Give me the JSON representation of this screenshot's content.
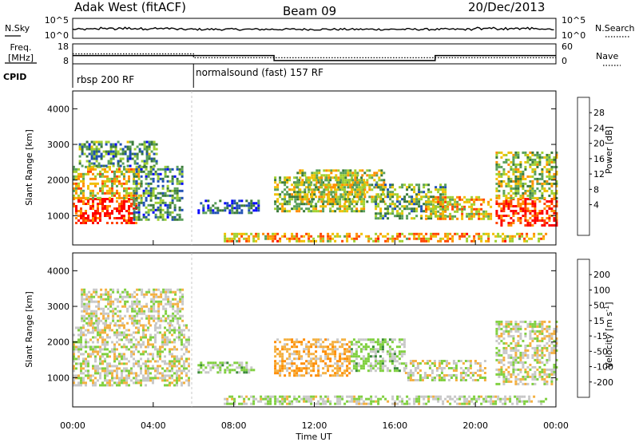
{
  "header": {
    "station": "Adak West (fitACF)",
    "beam": "Beam 09",
    "date": "20/Dec/2013"
  },
  "nsky_panel": {
    "left_label": "N.Sky",
    "right_label": "N.Search",
    "left_ticks": [
      "10^5",
      "10^0"
    ],
    "right_ticks": [
      "10^5",
      "10^0"
    ]
  },
  "freq_panel": {
    "left_label_line1": "Freq.",
    "left_label_line2": "[MHz]",
    "left_ticks": [
      "18",
      "8"
    ],
    "right_label": "Nave",
    "right_ticks": [
      "60",
      "0"
    ]
  },
  "cpid": {
    "label": "CPID",
    "modes": [
      {
        "name": "rbsp 200 RF",
        "start_hour": 0
      },
      {
        "name": "normalsound (fast) 157 RF",
        "start_hour": 6
      }
    ]
  },
  "colors": {
    "power": [
      "#0000ff",
      "#1f4fb4",
      "#3a7a3a",
      "#5aa05a",
      "#a0d030",
      "#f0c000",
      "#ff8c00",
      "#ff4400",
      "#ff0000"
    ],
    "velocity": [
      "#ff0000",
      "#ff4400",
      "#ff8c00",
      "#f4b040",
      "#c8c8c8",
      "#80d040",
      "#3a8a3a",
      "#2050b0",
      "#1040d0"
    ]
  },
  "chart_data": [
    {
      "type": "heatmap",
      "name": "power",
      "xlabel": "",
      "ylabel": "Slant Range [km]",
      "xlim": [
        0,
        24
      ],
      "ylim": [
        180,
        4500
      ],
      "yticks": [
        1000,
        2000,
        3000,
        4000
      ],
      "colorbar": {
        "label": "Power [dB]",
        "ticks": [
          "28",
          "24",
          "20",
          "16",
          "12",
          "8",
          "4"
        ],
        "range": [
          0,
          30
        ]
      },
      "regions": [
        {
          "x": [
            0,
            3.2
          ],
          "range": [
            800,
            1500
          ],
          "power_db": 27
        },
        {
          "x": [
            0,
            3.4
          ],
          "range": [
            1500,
            2400
          ],
          "power_db": 18
        },
        {
          "x": [
            0.3,
            4.2
          ],
          "range": [
            2400,
            3100
          ],
          "power_db": 10
        },
        {
          "x": [
            3.0,
            5.4
          ],
          "range": [
            900,
            2400
          ],
          "power_db": 9
        },
        {
          "x": [
            6.2,
            9.2
          ],
          "range": [
            1050,
            1450
          ],
          "power_db": 6
        },
        {
          "x": [
            10.0,
            14.5
          ],
          "range": [
            1100,
            2100
          ],
          "power_db": 14
        },
        {
          "x": [
            11.0,
            15.5
          ],
          "range": [
            1400,
            2300
          ],
          "power_db": 16
        },
        {
          "x": [
            15.0,
            18.5
          ],
          "range": [
            900,
            1900
          ],
          "power_db": 12
        },
        {
          "x": [
            17.5,
            20.8
          ],
          "range": [
            900,
            1550
          ],
          "power_db": 18
        },
        {
          "x": [
            21.0,
            24.0
          ],
          "range": [
            750,
            1500
          ],
          "power_db": 27
        },
        {
          "x": [
            21.0,
            24.0
          ],
          "range": [
            1500,
            2800
          ],
          "power_db": 15
        },
        {
          "x": [
            7.5,
            23.5
          ],
          "range": [
            280,
            520
          ],
          "power_db": 20
        }
      ]
    },
    {
      "type": "heatmap",
      "name": "velocity",
      "xlabel": "Time UT",
      "ylabel": "Slant Range [km]",
      "xlim": [
        0,
        24
      ],
      "ylim": [
        180,
        4500
      ],
      "xticks": [
        "00:00",
        "04:00",
        "08:00",
        "12:00",
        "16:00",
        "20:00",
        "00:00"
      ],
      "yticks": [
        1000,
        2000,
        3000,
        4000
      ],
      "colorbar": {
        "label": "Velocity [m s-1]",
        "ticks": [
          "200",
          "100",
          "50",
          "15",
          "-15",
          "-50",
          "-100",
          "-200"
        ],
        "range": [
          -250,
          250
        ]
      },
      "regions": [
        {
          "x": [
            0,
            5.8
          ],
          "range": [
            800,
            2500
          ],
          "velocity": 0
        },
        {
          "x": [
            0.4,
            5.5
          ],
          "range": [
            2500,
            3500
          ],
          "velocity": 0
        },
        {
          "x": [
            6.2,
            9.0
          ],
          "range": [
            1150,
            1450
          ],
          "velocity": 35
        },
        {
          "x": [
            10.0,
            13.8
          ],
          "range": [
            1050,
            2100
          ],
          "velocity": -60
        },
        {
          "x": [
            13.8,
            16.5
          ],
          "range": [
            1200,
            2100
          ],
          "velocity": 35
        },
        {
          "x": [
            16.5,
            20.5
          ],
          "range": [
            950,
            1500
          ],
          "velocity": 0
        },
        {
          "x": [
            21.0,
            24.0
          ],
          "range": [
            800,
            2600
          ],
          "velocity": 0
        },
        {
          "x": [
            7.5,
            23.5
          ],
          "range": [
            280,
            500
          ],
          "velocity": 20
        }
      ]
    }
  ]
}
